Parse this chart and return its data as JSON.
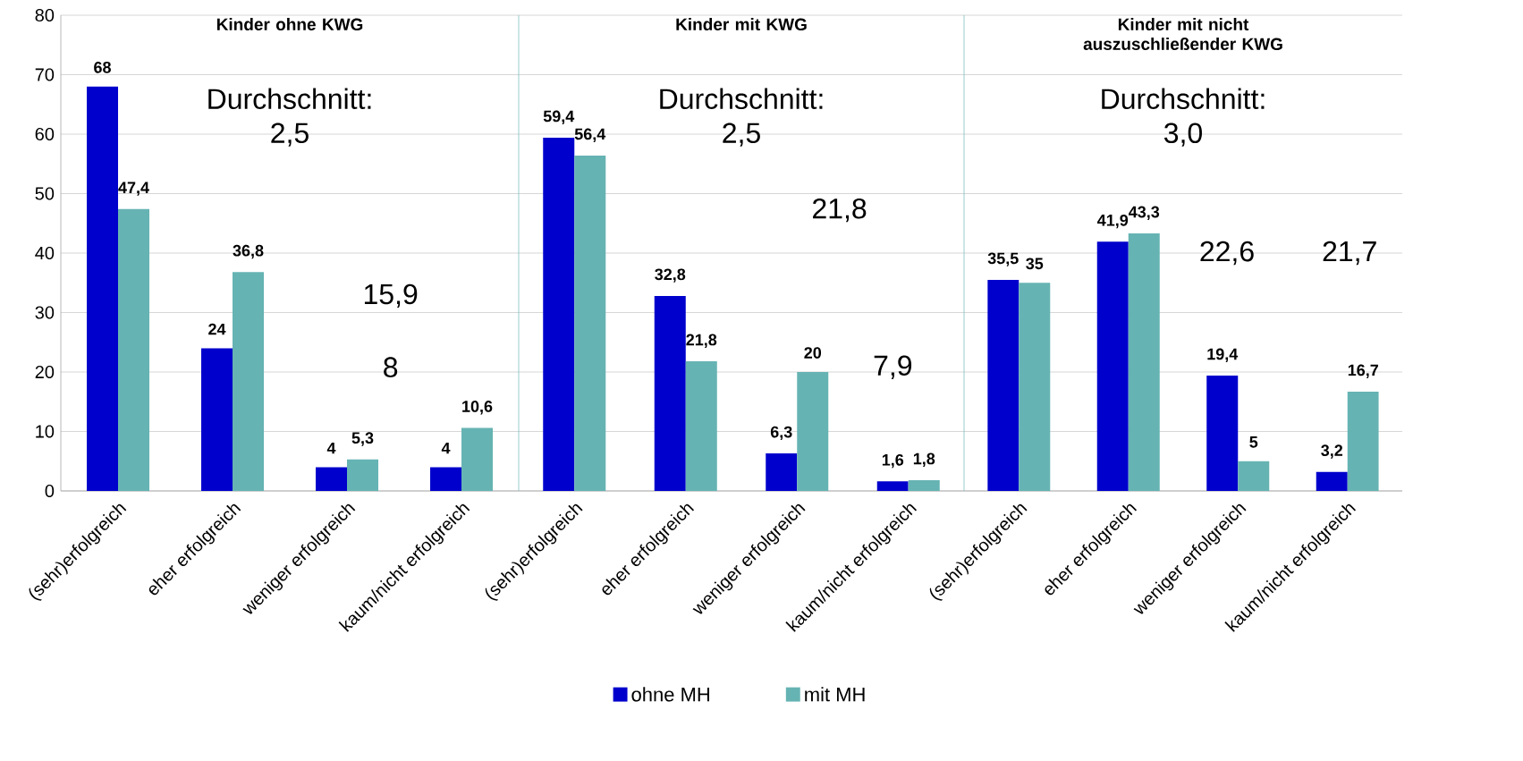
{
  "chart_data": [
    {
      "type": "bar",
      "title": "Kinder ohne KWG",
      "categories": [
        "(sehr)erfolgreich",
        "eher erfolgreich",
        "weniger erfolgreich",
        "kaum/nicht erfolgreich"
      ],
      "series": [
        {
          "color": "#0000cc",
          "values": [
            68,
            24,
            4,
            4
          ],
          "value_labels": [
            "68",
            "24",
            "4",
            "4"
          ]
        },
        {
          "color": "#66b3b3",
          "values": [
            47.4,
            36.8,
            5.3,
            10.6
          ],
          "value_labels": [
            "47,4",
            "36,8",
            "5,3",
            "10,6"
          ]
        }
      ],
      "ylim": [
        0,
        80
      ],
      "yticks": [
        0,
        10,
        20,
        30,
        40,
        50,
        60,
        70,
        80
      ],
      "grid": "y",
      "annotations": [
        "Durchschnitt: 2,5",
        "15,9",
        "8"
      ]
    },
    {
      "type": "bar",
      "title": "Kinder mit KWG",
      "categories": [
        "(sehr)erfolgreich",
        "eher erfolgreich",
        "weniger erfolgreich",
        "kaum/nicht erfolgreich"
      ],
      "series": [
        {
          "name": "ohne MH",
          "color": "#0000cc",
          "values": [
            59.4,
            32.8,
            6.3,
            1.6
          ],
          "value_labels": [
            "59,4",
            "32,8",
            "6,3",
            "1,6"
          ]
        },
        {
          "name": "mit MH",
          "color": "#66b3b3",
          "values": [
            56.4,
            21.8,
            20,
            1.8
          ],
          "value_labels": [
            "56,4",
            "21,8",
            "20",
            "1,8"
          ]
        }
      ],
      "ylim": [
        0,
        80
      ],
      "yticks": [
        0,
        10,
        20,
        30,
        40,
        50,
        60,
        70,
        80
      ],
      "grid": "y",
      "tick_labels": "x",
      "legend": "bottom",
      "annotations": [
        "Durchschnitt: 2,5",
        "21,8",
        "7,9"
      ]
    },
    {
      "type": "bar",
      "title": "Kinder mit nicht auszuschließender KWG",
      "categories": [
        "(sehr)erfolgreich",
        "eher erfolgreich",
        "weniger erfolgreich",
        "kaum/nicht erfolgreich"
      ],
      "series": [
        {
          "color": "#0000cc",
          "values": [
            35.5,
            41.9,
            19.4,
            3.2
          ],
          "value_labels": [
            "35,5",
            "41,9",
            "19,4",
            "3,2"
          ]
        },
        {
          "color": "#66b3b3",
          "values": [
            35,
            43.3,
            5,
            16.7
          ],
          "value_labels": [
            "35",
            "43,3",
            "5",
            "16,7"
          ]
        }
      ],
      "ylim": [
        0,
        80
      ],
      "yticks": [
        0,
        10,
        20,
        30,
        40,
        50,
        60,
        70,
        80
      ],
      "grid": "y",
      "tick_labels": "x",
      "annotations": [
        "Durchschnitt: 3,0",
        "22,6",
        "21,7"
      ]
    }
  ]
}
